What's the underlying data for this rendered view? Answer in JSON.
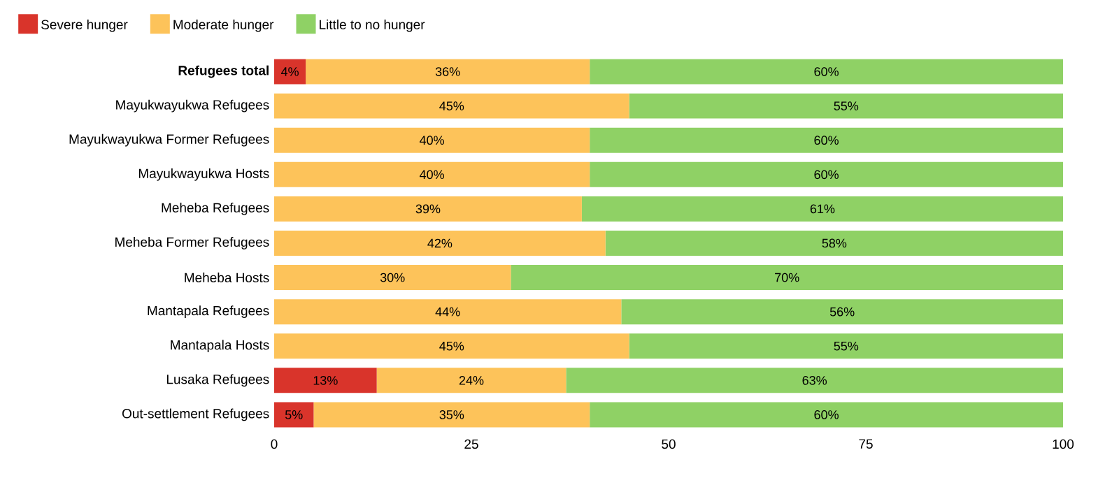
{
  "chart_data": {
    "type": "bar",
    "orientation": "horizontal",
    "stacked": true,
    "legend": "top left",
    "grid": false,
    "categories": [
      "**Refugees total**",
      "Mayukwayukwa Refugees",
      "Mayukwayukwa Former Refugees",
      "Mayukwayukwa Hosts",
      "Meheba Refugees",
      "Meheba Former Refugees",
      "Meheba Hosts",
      "Mantapala Refugees",
      "Mantapala Hosts",
      "Lusaka Refugees",
      "Out-settlement Refugees"
    ],
    "series": [
      {
        "name": "Severe hunger",
        "color": "#d9342b",
        "values": [
          4,
          null,
          null,
          null,
          null,
          null,
          null,
          null,
          null,
          13,
          5
        ],
        "value_labels": [
          "4%",
          null,
          null,
          null,
          null,
          null,
          null,
          null,
          null,
          "13%",
          "5%"
        ]
      },
      {
        "name": "Moderate hunger",
        "color": "#fdc35a",
        "values": [
          36,
          45,
          40,
          40,
          39,
          42,
          30,
          44,
          45,
          24,
          35
        ],
        "value_labels": [
          "36%",
          "45%",
          "40%",
          "40%",
          "39%",
          "42%",
          "30%",
          "44%",
          "45%",
          "24%",
          "35%"
        ]
      },
      {
        "name": "Little to no hunger",
        "color": "#8fd165",
        "values": [
          60,
          55,
          60,
          60,
          61,
          58,
          70,
          56,
          55,
          63,
          60
        ],
        "value_labels": [
          "60%",
          "55%",
          "60%",
          "60%",
          "61%",
          "58%",
          "70%",
          "56%",
          "55%",
          "63%",
          "60%"
        ]
      }
    ],
    "xlim": [
      0,
      100
    ],
    "xticks": [
      0,
      25,
      50,
      75,
      100
    ]
  }
}
